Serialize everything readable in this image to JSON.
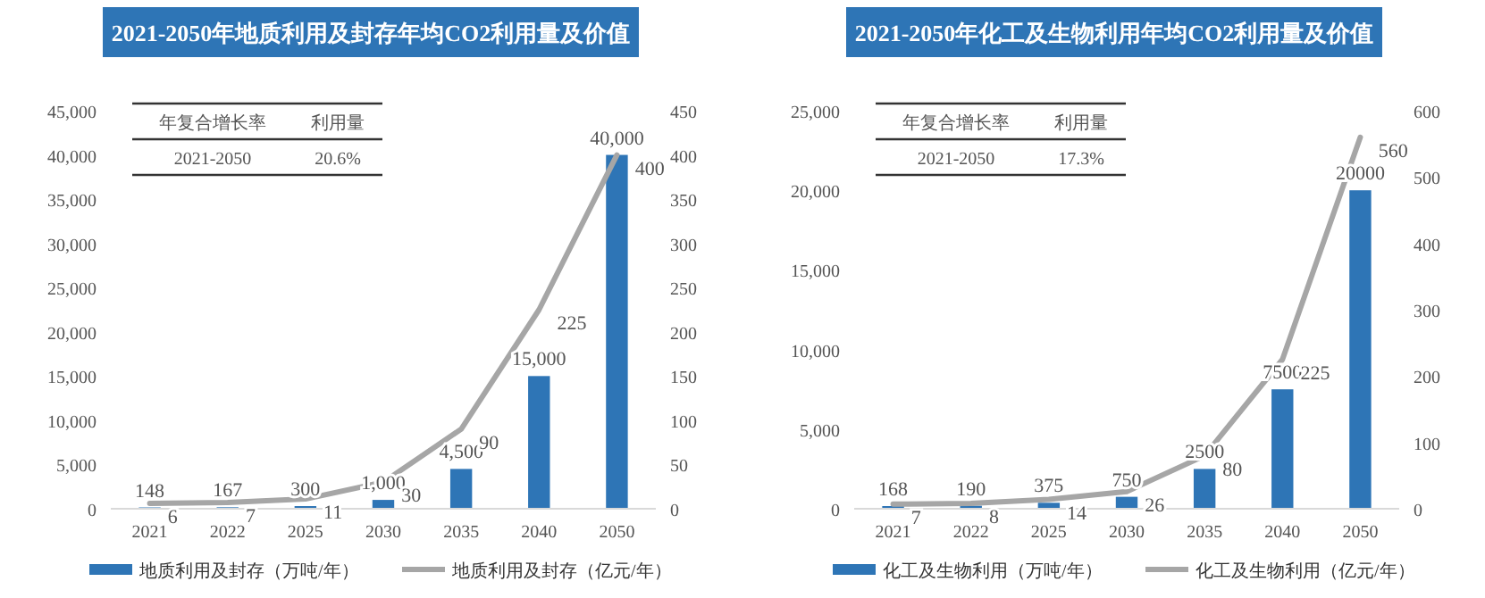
{
  "chart_data": [
    {
      "type": "bar",
      "title": "2021-2050年地质利用及封存年均CO2利用量及价值",
      "categories": [
        "2021",
        "2022",
        "2025",
        "2030",
        "2035",
        "2040",
        "2050"
      ],
      "series": [
        {
          "name": "地质利用及封存（万吨/年）",
          "color": "#2e75b6",
          "values": [
            148,
            167,
            300,
            1000,
            4500,
            15000,
            40000
          ],
          "value_labels": [
            "148",
            "167",
            "300",
            "1,000",
            "4,500",
            "15,000",
            "40,000"
          ]
        },
        {
          "name": "地质利用及封存（亿元/年）",
          "type": "line",
          "axis": "y2",
          "color": "#a6a6a6",
          "values": [
            6,
            7,
            11,
            30,
            90,
            225,
            400
          ],
          "value_labels": [
            "6",
            "7",
            "11",
            "30",
            "90",
            "225",
            "400"
          ]
        }
      ],
      "ylim": [
        0,
        45000
      ],
      "yticks": [
        {
          "value": 0,
          "label": "0"
        },
        {
          "value": 5000,
          "label": "5,000"
        },
        {
          "value": 10000,
          "label": "10,000"
        },
        {
          "value": 15000,
          "label": "15,000"
        },
        {
          "value": 20000,
          "label": "20,000"
        },
        {
          "value": 25000,
          "label": "25,000"
        },
        {
          "value": 30000,
          "label": "30,000"
        },
        {
          "value": 35000,
          "label": "35,000"
        },
        {
          "value": 40000,
          "label": "40,000"
        },
        {
          "value": 45000,
          "label": "45,000"
        }
      ],
      "y2lim": [
        0,
        450
      ],
      "y2ticks": [
        0,
        50,
        100,
        150,
        200,
        250,
        300,
        350,
        400,
        450
      ],
      "annotations": [
        "年复合增长率",
        "利用量",
        "2021-2050",
        "20.6%"
      ],
      "legend": "bottom",
      "grid": false
    },
    {
      "type": "bar",
      "title": "2021-2050年化工及生物利用年均CO2利用量及价值",
      "categories": [
        "2021",
        "2022",
        "2025",
        "2030",
        "2035",
        "2040",
        "2050"
      ],
      "series": [
        {
          "name": "化工及生物利用（万吨/年）",
          "color": "#2e75b6",
          "values": [
            168,
            190,
            375,
            750,
            2500,
            7500,
            20000
          ],
          "value_labels": [
            "168",
            "190",
            "375",
            "750",
            "2500",
            "7500",
            "20000"
          ]
        },
        {
          "name": "化工及生物利用（亿元/年）",
          "type": "line",
          "axis": "y2",
          "color": "#a6a6a6",
          "values": [
            7,
            8,
            14,
            26,
            80,
            225,
            560
          ],
          "value_labels": [
            "7",
            "8",
            "14",
            "26",
            "80",
            "225",
            "560"
          ]
        }
      ],
      "ylim": [
        0,
        25000
      ],
      "yticks": [
        {
          "value": 0,
          "label": "0"
        },
        {
          "value": 5000,
          "label": "5,000"
        },
        {
          "value": 10000,
          "label": "10,000"
        },
        {
          "value": 15000,
          "label": "15,000"
        },
        {
          "value": 20000,
          "label": "20,000"
        },
        {
          "value": 25000,
          "label": "25,000"
        }
      ],
      "y2lim": [
        0,
        600
      ],
      "y2ticks": [
        0,
        100,
        200,
        300,
        400,
        500,
        600
      ],
      "annotations": [
        "年复合增长率",
        "利用量",
        "2021-2050",
        "17.3%"
      ],
      "legend": "bottom",
      "grid": false
    }
  ]
}
